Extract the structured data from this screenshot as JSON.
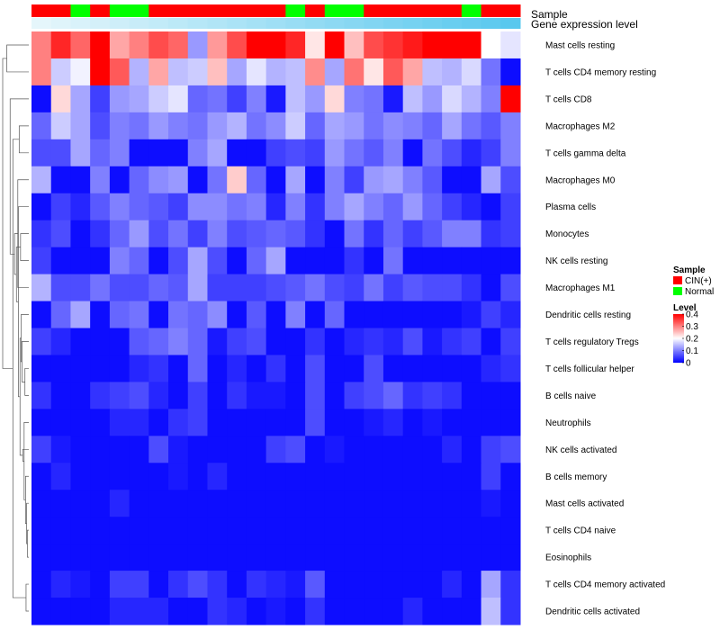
{
  "chart_data": {
    "type": "heatmap",
    "title": "",
    "annotation_tracks": [
      {
        "label": "Sample",
        "key": "sample"
      },
      {
        "label": "Gene expression level",
        "key": "gene_expression_level"
      }
    ],
    "rows": [
      "Mast cells resting",
      "T cells CD4 memory resting",
      "T cells CD8",
      "Macrophages M2",
      "T cells gamma delta",
      "Macrophages M0",
      "Plasma cells",
      "Monocytes",
      "NK cells resting",
      "Macrophages M1",
      "Dendritic cells resting",
      "T cells regulatory  Tregs",
      "T cells follicular helper",
      "B cells naive",
      "Neutrophils",
      "NK cells activated",
      "B cells memory",
      "Mast cells activated",
      "T cells CD4 naive",
      "Eosinophils",
      "T cells CD4 memory activated",
      "Dendritic cells activated"
    ],
    "sample": [
      "CIN(+)",
      "CIN(+)",
      "Normal",
      "CIN(+)",
      "Normal",
      "Normal",
      "CIN(+)",
      "CIN(+)",
      "CIN(+)",
      "CIN(+)",
      "CIN(+)",
      "CIN(+)",
      "CIN(+)",
      "Normal",
      "CIN(+)",
      "Normal",
      "Normal",
      "CIN(+)",
      "CIN(+)",
      "CIN(+)",
      "CIN(+)",
      "CIN(+)",
      "Normal",
      "CIN(+)",
      "CIN(+)"
    ],
    "gene_expression_level": [
      0.02,
      0.06,
      0.1,
      0.14,
      0.18,
      0.22,
      0.26,
      0.3,
      0.34,
      0.38,
      0.42,
      0.46,
      0.5,
      0.54,
      0.58,
      0.62,
      0.66,
      0.7,
      0.74,
      0.78,
      0.82,
      0.86,
      0.9,
      0.94,
      0.98
    ],
    "values": [
      [
        0.3,
        0.37,
        0.32,
        0.41,
        0.27,
        0.3,
        0.34,
        0.32,
        0.12,
        0.28,
        0.34,
        0.4,
        0.4,
        0.37,
        0.22,
        0.4,
        0.25,
        0.34,
        0.36,
        0.38,
        0.4,
        0.4,
        0.4,
        0.2,
        0.18
      ],
      [
        0.3,
        0.16,
        0.19,
        0.4,
        0.33,
        0.14,
        0.27,
        0.15,
        0.16,
        0.25,
        0.13,
        0.18,
        0.14,
        0.15,
        0.29,
        0.13,
        0.31,
        0.22,
        0.33,
        0.27,
        0.15,
        0.14,
        0.17,
        0.09,
        0.01
      ],
      [
        0.01,
        0.23,
        0.13,
        0.05,
        0.12,
        0.13,
        0.16,
        0.18,
        0.08,
        0.09,
        0.05,
        0.1,
        0.02,
        0.15,
        0.12,
        0.23,
        0.1,
        0.09,
        0.02,
        0.15,
        0.12,
        0.17,
        0.14,
        0.1,
        0.4
      ],
      [
        0.08,
        0.16,
        0.13,
        0.06,
        0.1,
        0.09,
        0.12,
        0.1,
        0.09,
        0.12,
        0.14,
        0.09,
        0.11,
        0.16,
        0.08,
        0.13,
        0.12,
        0.09,
        0.11,
        0.1,
        0.08,
        0.13,
        0.09,
        0.07,
        0.1
      ],
      [
        0.06,
        0.06,
        0.13,
        0.08,
        0.1,
        0.01,
        0.01,
        0.01,
        0.1,
        0.13,
        0.01,
        0.01,
        0.05,
        0.06,
        0.05,
        0.12,
        0.09,
        0.07,
        0.1,
        0.01,
        0.09,
        0.06,
        0.03,
        0.05,
        0.1
      ],
      [
        0.14,
        0.01,
        0.01,
        0.1,
        0.01,
        0.08,
        0.11,
        0.12,
        0.01,
        0.09,
        0.24,
        0.08,
        0.01,
        0.13,
        0.01,
        0.1,
        0.05,
        0.12,
        0.13,
        0.1,
        0.07,
        0.01,
        0.01,
        0.13,
        0.06
      ],
      [
        0.01,
        0.05,
        0.03,
        0.07,
        0.1,
        0.08,
        0.07,
        0.05,
        0.11,
        0.11,
        0.09,
        0.1,
        0.03,
        0.1,
        0.04,
        0.1,
        0.13,
        0.1,
        0.08,
        0.12,
        0.08,
        0.05,
        0.03,
        0.01,
        0.05
      ],
      [
        0.04,
        0.06,
        0.01,
        0.04,
        0.08,
        0.12,
        0.06,
        0.09,
        0.05,
        0.1,
        0.06,
        0.07,
        0.08,
        0.07,
        0.04,
        0.01,
        0.09,
        0.04,
        0.08,
        0.05,
        0.07,
        0.1,
        0.1,
        0.04,
        0.05
      ],
      [
        0.05,
        0.01,
        0.01,
        0.01,
        0.1,
        0.08,
        0.01,
        0.06,
        0.13,
        0.06,
        0.01,
        0.08,
        0.13,
        0.01,
        0.01,
        0.01,
        0.04,
        0.01,
        0.09,
        0.01,
        0.01,
        0.01,
        0.01,
        0.01,
        0.01
      ],
      [
        0.14,
        0.06,
        0.06,
        0.09,
        0.06,
        0.06,
        0.08,
        0.07,
        0.13,
        0.05,
        0.05,
        0.05,
        0.06,
        0.07,
        0.09,
        0.06,
        0.05,
        0.09,
        0.05,
        0.07,
        0.06,
        0.06,
        0.04,
        0.01,
        0.06
      ],
      [
        0.01,
        0.08,
        0.13,
        0.01,
        0.08,
        0.09,
        0.01,
        0.09,
        0.08,
        0.11,
        0.01,
        0.07,
        0.01,
        0.1,
        0.01,
        0.08,
        0.01,
        0.01,
        0.01,
        0.01,
        0.01,
        0.01,
        0.02,
        0.05,
        0.03
      ],
      [
        0.05,
        0.03,
        0.01,
        0.01,
        0.01,
        0.07,
        0.08,
        0.1,
        0.08,
        0.02,
        0.05,
        0.06,
        0.01,
        0.01,
        0.04,
        0.01,
        0.03,
        0.04,
        0.03,
        0.06,
        0.02,
        0.04,
        0.05,
        0.01,
        0.05
      ],
      [
        0.01,
        0.01,
        0.01,
        0.01,
        0.01,
        0.03,
        0.04,
        0.01,
        0.08,
        0.01,
        0.03,
        0.01,
        0.04,
        0.01,
        0.06,
        0.01,
        0.01,
        0.06,
        0.01,
        0.01,
        0.01,
        0.01,
        0.01,
        0.03,
        0.04
      ],
      [
        0.04,
        0.01,
        0.01,
        0.04,
        0.05,
        0.06,
        0.03,
        0.01,
        0.05,
        0.01,
        0.04,
        0.02,
        0.02,
        0.01,
        0.06,
        0.01,
        0.05,
        0.06,
        0.08,
        0.04,
        0.05,
        0.04,
        0.01,
        0.01,
        0.01
      ],
      [
        0.01,
        0.01,
        0.01,
        0.01,
        0.03,
        0.03,
        0.01,
        0.04,
        0.05,
        0.01,
        0.01,
        0.01,
        0.01,
        0.01,
        0.06,
        0.01,
        0.01,
        0.02,
        0.03,
        0.01,
        0.02,
        0.01,
        0.01,
        0.01,
        0.01
      ],
      [
        0.05,
        0.02,
        0.01,
        0.01,
        0.01,
        0.01,
        0.06,
        0.02,
        0.01,
        0.01,
        0.01,
        0.01,
        0.05,
        0.06,
        0.01,
        0.02,
        0.01,
        0.01,
        0.01,
        0.01,
        0.01,
        0.03,
        0.01,
        0.05,
        0.06
      ],
      [
        0.01,
        0.03,
        0.01,
        0.01,
        0.01,
        0.01,
        0.01,
        0.02,
        0.01,
        0.03,
        0.01,
        0.01,
        0.01,
        0.01,
        0.01,
        0.01,
        0.01,
        0.01,
        0.01,
        0.01,
        0.01,
        0.01,
        0.01,
        0.05,
        0.01
      ],
      [
        0.01,
        0.01,
        0.01,
        0.01,
        0.03,
        0.01,
        0.01,
        0.01,
        0.01,
        0.01,
        0.01,
        0.01,
        0.01,
        0.01,
        0.01,
        0.01,
        0.01,
        0.01,
        0.01,
        0.01,
        0.01,
        0.01,
        0.01,
        0.02,
        0.01
      ],
      [
        0.01,
        0.01,
        0.01,
        0.01,
        0.01,
        0.01,
        0.01,
        0.01,
        0.01,
        0.01,
        0.01,
        0.01,
        0.01,
        0.01,
        0.01,
        0.01,
        0.01,
        0.01,
        0.01,
        0.01,
        0.01,
        0.01,
        0.01,
        0.01,
        0.01
      ],
      [
        0.01,
        0.01,
        0.01,
        0.01,
        0.01,
        0.01,
        0.01,
        0.01,
        0.01,
        0.01,
        0.01,
        0.01,
        0.01,
        0.01,
        0.01,
        0.01,
        0.01,
        0.01,
        0.01,
        0.01,
        0.01,
        0.01,
        0.01,
        0.01,
        0.01
      ],
      [
        0.01,
        0.03,
        0.02,
        0.01,
        0.05,
        0.05,
        0.01,
        0.04,
        0.06,
        0.04,
        0.01,
        0.04,
        0.03,
        0.02,
        0.07,
        0.01,
        0.01,
        0.01,
        0.01,
        0.01,
        0.01,
        0.03,
        0.01,
        0.13,
        0.04
      ],
      [
        0.01,
        0.01,
        0.01,
        0.01,
        0.03,
        0.03,
        0.03,
        0.01,
        0.01,
        0.04,
        0.03,
        0.01,
        0.02,
        0.01,
        0.04,
        0.01,
        0.01,
        0.01,
        0.01,
        0.03,
        0.01,
        0.01,
        0.01,
        0.15,
        0.04
      ]
    ],
    "dendrogram": {
      "order": [
        0,
        1,
        2,
        3,
        4,
        5,
        6,
        7,
        8,
        9,
        10,
        11,
        12,
        13,
        14,
        15,
        16,
        17,
        18,
        19,
        20,
        21
      ],
      "merges": [
        [
          0,
          1,
          0.8
        ],
        [
          18,
          19,
          0.05
        ],
        [
          17,
          23,
          0.08
        ],
        [
          16,
          24,
          0.12
        ],
        [
          14,
          25,
          0.17
        ],
        [
          12,
          13,
          0.14
        ],
        [
          15,
          26,
          0.22
        ],
        [
          11,
          27,
          0.25
        ],
        [
          10,
          29,
          0.28
        ],
        [
          20,
          21,
          0.1
        ],
        [
          28,
          30,
          0.32
        ],
        [
          7,
          8,
          0.3
        ],
        [
          6,
          32,
          0.38
        ],
        [
          5,
          9,
          0.4
        ],
        [
          33,
          34,
          0.45
        ],
        [
          3,
          4,
          0.35
        ],
        [
          35,
          36,
          0.52
        ],
        [
          31,
          37,
          0.58
        ],
        [
          2,
          38,
          0.68
        ],
        [
          22,
          39,
          0.95
        ]
      ]
    },
    "legends": {
      "sample": {
        "title": "Sample",
        "items": [
          {
            "label": "CIN(+)",
            "color": "#ff0000"
          },
          {
            "label": "Normal",
            "color": "#00ff00"
          }
        ]
      },
      "level": {
        "title": "Level",
        "ticks": [
          "0.4",
          "0.3",
          "0.2",
          "0.1",
          "0"
        ],
        "min": 0,
        "max": 0.4
      }
    },
    "colors": {
      "low": "#0000ff",
      "mid": "#ffffff",
      "high": "#ff0000",
      "cin": "#ff0000",
      "normal": "#00ff00",
      "expr_low": "#e8f7fb",
      "expr_high": "#56c7ee",
      "dendro_line": "#555555"
    }
  }
}
